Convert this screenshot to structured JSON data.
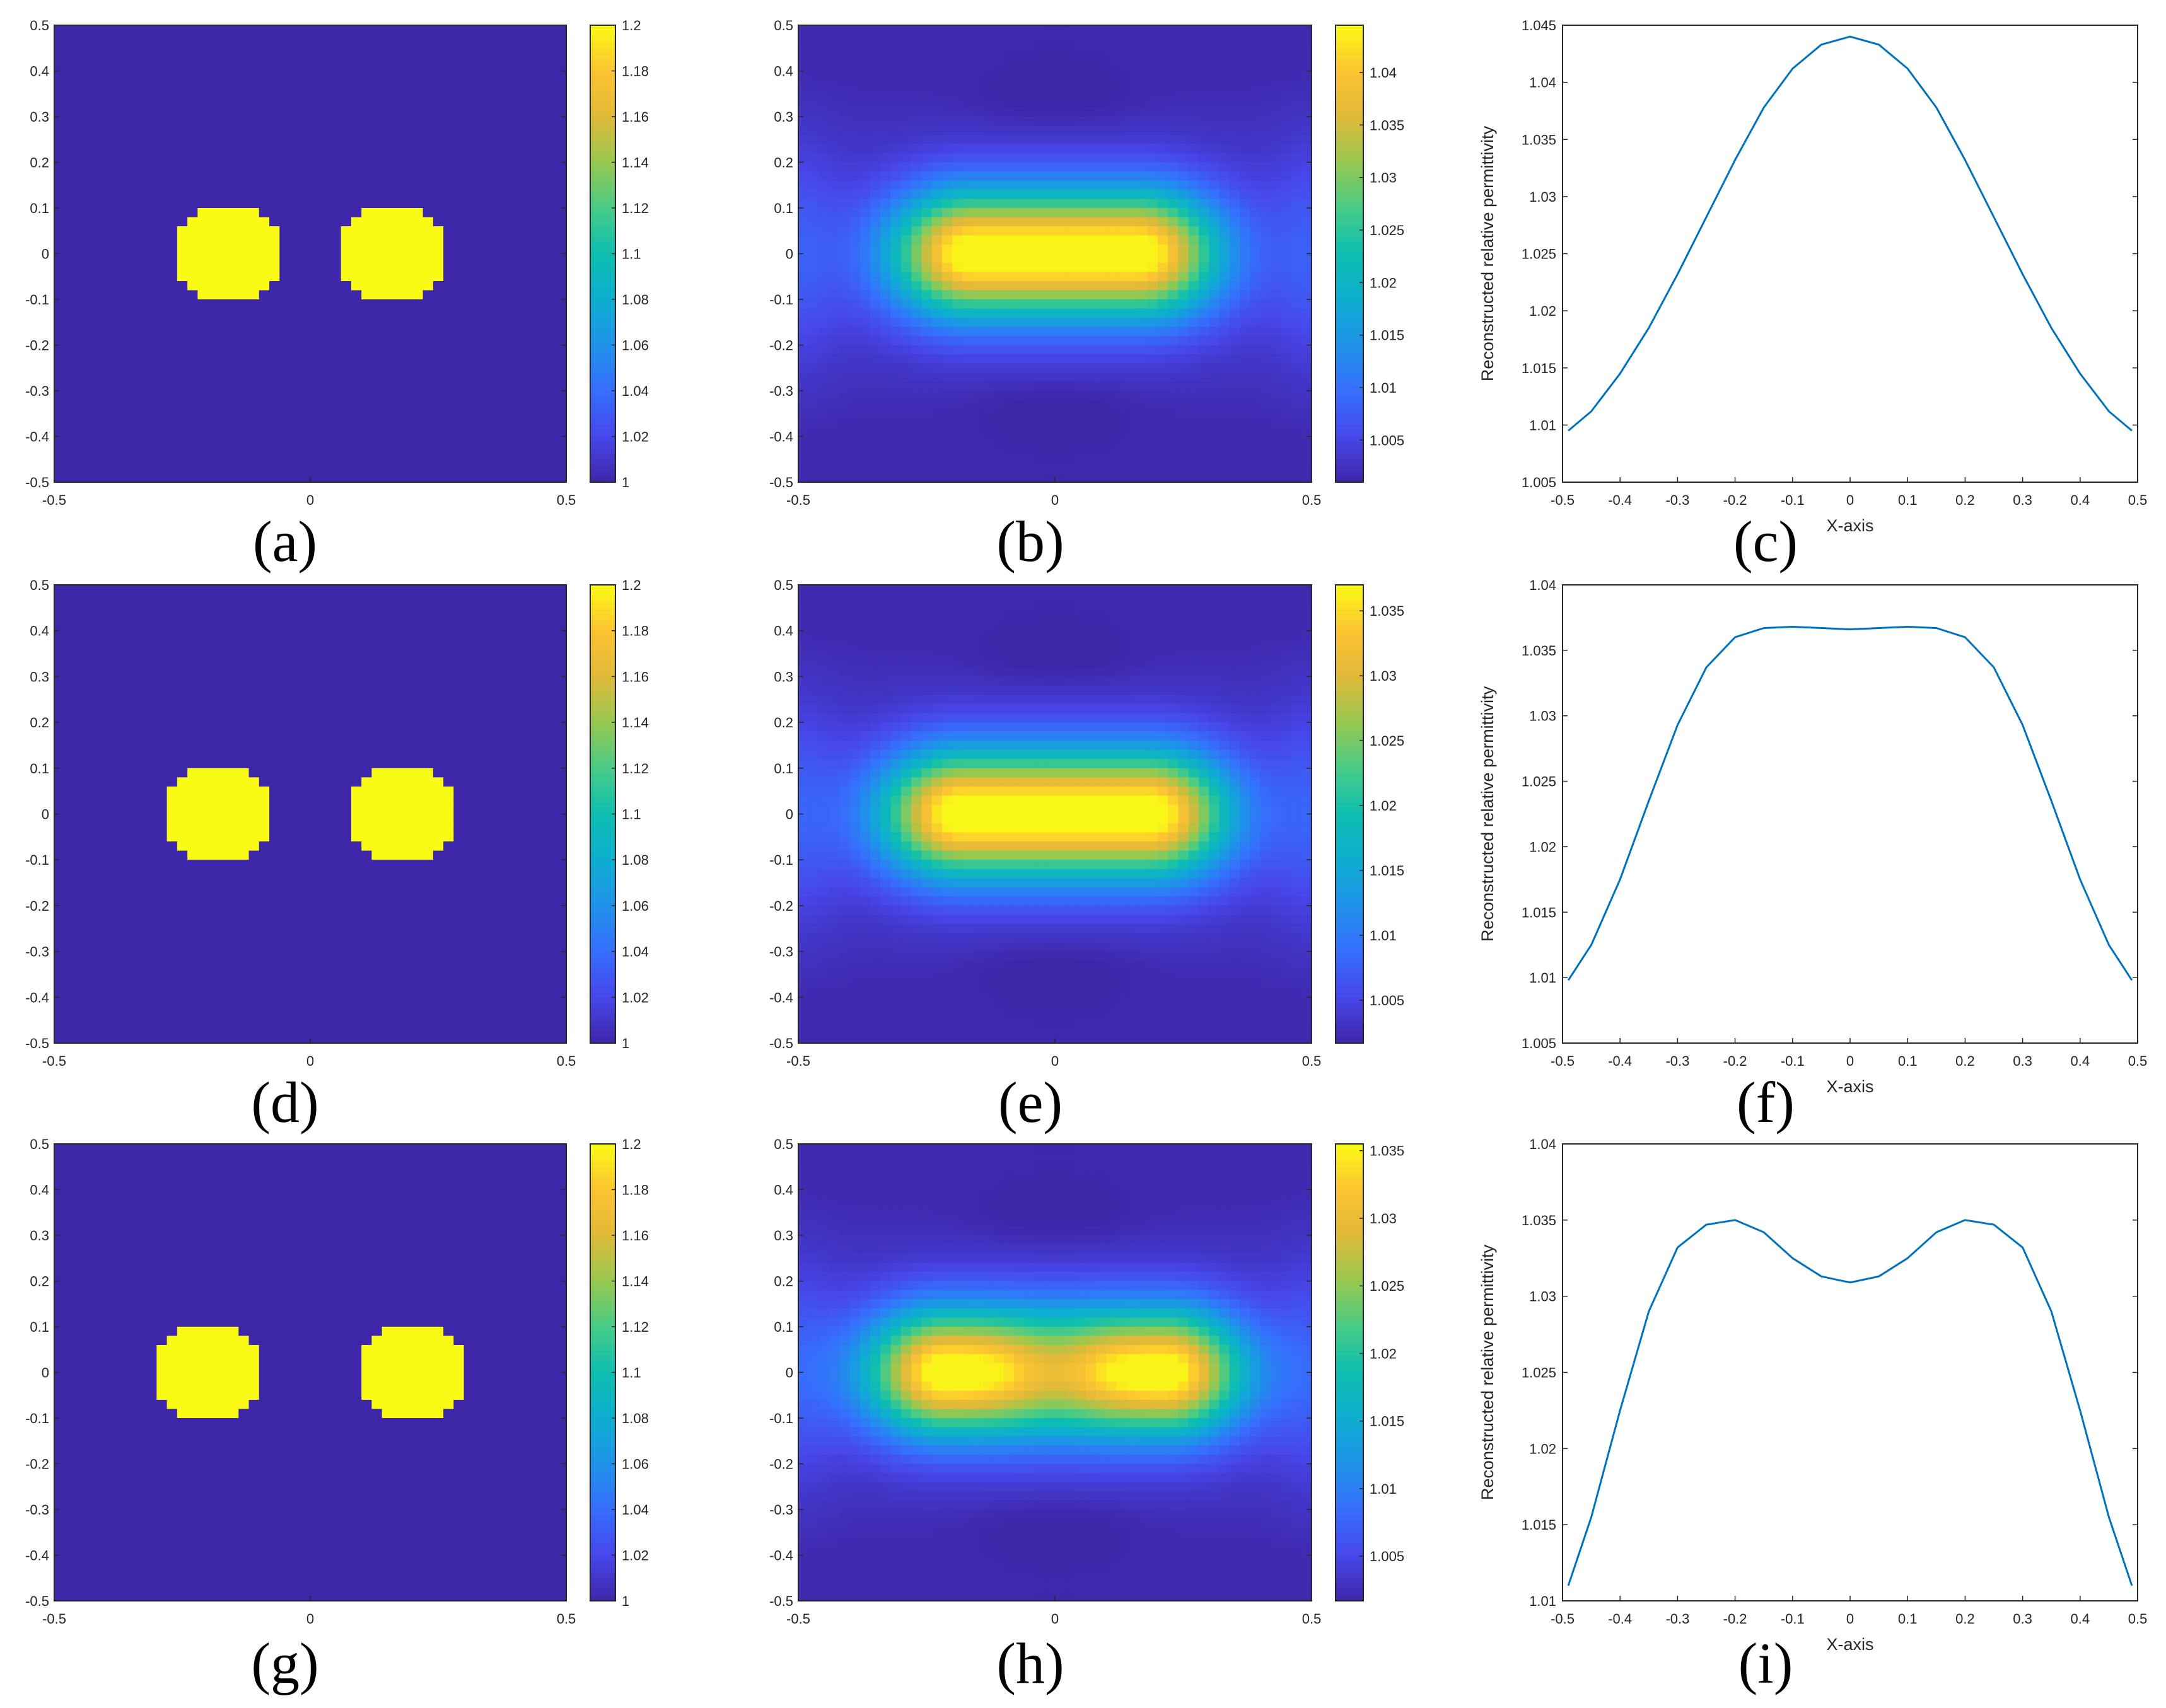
{
  "chart_data": [
    {
      "id": "a",
      "type": "heatmap",
      "panel_label": "(a)",
      "field": "true",
      "centers": [
        -0.16,
        0.16
      ],
      "radius": 0.105,
      "xlim": [
        -0.5,
        0.5
      ],
      "ylim": [
        -0.5,
        0.5
      ],
      "xticks": [
        "-0.5",
        "0",
        "0.5"
      ],
      "yticks": [
        "0.5",
        "0.4",
        "0.3",
        "0.2",
        "0.1",
        "0",
        "-0.1",
        "-0.2",
        "-0.3",
        "-0.4",
        "-0.5"
      ],
      "clim": [
        1,
        1.2
      ],
      "colorbar_ticks": [
        "1.2",
        "1.18",
        "1.16",
        "1.14",
        "1.12",
        "1.1",
        "1.08",
        "1.06",
        "1.04",
        "1.02",
        "1"
      ]
    },
    {
      "id": "b",
      "type": "heatmap",
      "panel_label": "(b)",
      "field": "recon",
      "centers": [
        -0.16,
        0.16
      ],
      "peak": 1.044,
      "xlim": [
        -0.5,
        0.5
      ],
      "ylim": [
        -0.5,
        0.5
      ],
      "xticks": [
        "-0.5",
        "0",
        "0.5"
      ],
      "yticks": [
        "0.5",
        "0.4",
        "0.3",
        "0.2",
        "0.1",
        "0",
        "-0.1",
        "-0.2",
        "-0.3",
        "-0.4",
        "-0.5"
      ],
      "clim": [
        1.001,
        1.0445
      ],
      "colorbar_ticks": [
        "1.04",
        "1.035",
        "1.03",
        "1.025",
        "1.02",
        "1.015",
        "1.01",
        "1.005"
      ]
    },
    {
      "id": "c",
      "type": "line",
      "panel_label": "(c)",
      "xlabel": "X-axis",
      "ylabel": "Reconstructed relative permittivity",
      "xlim": [
        -0.5,
        0.5
      ],
      "ylim": [
        1.005,
        1.045
      ],
      "xticks": [
        "-0.5",
        "-0.4",
        "-0.3",
        "-0.2",
        "-0.1",
        "0",
        "0.1",
        "0.2",
        "0.3",
        "0.4",
        "0.5"
      ],
      "yticks": [
        "1.045",
        "1.04",
        "1.035",
        "1.03",
        "1.025",
        "1.02",
        "1.015",
        "1.01",
        "1.005"
      ],
      "x": [
        -0.49,
        -0.45,
        -0.4,
        -0.35,
        -0.3,
        -0.25,
        -0.2,
        -0.15,
        -0.1,
        -0.05,
        0,
        0.05,
        0.1,
        0.15,
        0.2,
        0.25,
        0.3,
        0.35,
        0.4,
        0.45,
        0.49
      ],
      "values": [
        1.0095,
        1.0112,
        1.0145,
        1.0185,
        1.0232,
        1.0282,
        1.0332,
        1.0378,
        1.0412,
        1.0433,
        1.044,
        1.0433,
        1.0412,
        1.0378,
        1.0332,
        1.0282,
        1.0232,
        1.0185,
        1.0145,
        1.0112,
        1.0095
      ]
    },
    {
      "id": "d",
      "type": "heatmap",
      "panel_label": "(d)",
      "field": "true",
      "centers": [
        -0.18,
        0.18
      ],
      "radius": 0.105,
      "xlim": [
        -0.5,
        0.5
      ],
      "ylim": [
        -0.5,
        0.5
      ],
      "xticks": [
        "-0.5",
        "0",
        "0.5"
      ],
      "yticks": [
        "0.5",
        "0.4",
        "0.3",
        "0.2",
        "0.1",
        "0",
        "-0.1",
        "-0.2",
        "-0.3",
        "-0.4",
        "-0.5"
      ],
      "clim": [
        1,
        1.2
      ],
      "colorbar_ticks": [
        "1.2",
        "1.18",
        "1.16",
        "1.14",
        "1.12",
        "1.1",
        "1.08",
        "1.06",
        "1.04",
        "1.02",
        "1"
      ]
    },
    {
      "id": "e",
      "type": "heatmap",
      "panel_label": "(e)",
      "field": "recon",
      "centers": [
        -0.18,
        0.18
      ],
      "peak": 1.0368,
      "xlim": [
        -0.5,
        0.5
      ],
      "ylim": [
        -0.5,
        0.5
      ],
      "xticks": [
        "-0.5",
        "0",
        "0.5"
      ],
      "yticks": [
        "0.5",
        "0.4",
        "0.3",
        "0.2",
        "0.1",
        "0",
        "-0.1",
        "-0.2",
        "-0.3",
        "-0.4",
        "-0.5"
      ],
      "clim": [
        1.0017,
        1.037
      ],
      "colorbar_ticks": [
        "1.035",
        "1.03",
        "1.025",
        "1.02",
        "1.015",
        "1.01",
        "1.005"
      ]
    },
    {
      "id": "f",
      "type": "line",
      "panel_label": "(f)",
      "xlabel": "X-axis",
      "ylabel": "Reconstructed relative permittivity",
      "xlim": [
        -0.5,
        0.5
      ],
      "ylim": [
        1.005,
        1.04
      ],
      "xticks": [
        "-0.5",
        "-0.4",
        "-0.3",
        "-0.2",
        "-0.1",
        "0",
        "0.1",
        "0.2",
        "0.3",
        "0.4",
        "0.5"
      ],
      "yticks": [
        "1.04",
        "1.035",
        "1.03",
        "1.025",
        "1.02",
        "1.015",
        "1.01",
        "1.005"
      ],
      "x": [
        -0.49,
        -0.45,
        -0.4,
        -0.35,
        -0.3,
        -0.25,
        -0.2,
        -0.15,
        -0.1,
        -0.05,
        0,
        0.05,
        0.1,
        0.15,
        0.2,
        0.25,
        0.3,
        0.35,
        0.4,
        0.45,
        0.49
      ],
      "values": [
        1.0098,
        1.0125,
        1.0175,
        1.0235,
        1.0293,
        1.0337,
        1.036,
        1.0367,
        1.0368,
        1.0367,
        1.0366,
        1.0367,
        1.0368,
        1.0367,
        1.036,
        1.0337,
        1.0293,
        1.0235,
        1.0175,
        1.0125,
        1.0098
      ]
    },
    {
      "id": "g",
      "type": "heatmap",
      "panel_label": "(g)",
      "field": "true",
      "centers": [
        -0.2,
        0.2
      ],
      "radius": 0.105,
      "xlim": [
        -0.5,
        0.5
      ],
      "ylim": [
        -0.5,
        0.5
      ],
      "xticks": [
        "-0.5",
        "0",
        "0.5"
      ],
      "yticks": [
        "0.5",
        "0.4",
        "0.3",
        "0.2",
        "0.1",
        "0",
        "-0.1",
        "-0.2",
        "-0.3",
        "-0.4",
        "-0.5"
      ],
      "clim": [
        1,
        1.2
      ],
      "colorbar_ticks": [
        "1.2",
        "1.18",
        "1.16",
        "1.14",
        "1.12",
        "1.1",
        "1.08",
        "1.06",
        "1.04",
        "1.02",
        "1"
      ]
    },
    {
      "id": "h",
      "type": "heatmap",
      "panel_label": "(h)",
      "field": "recon",
      "centers": [
        -0.21,
        0.21
      ],
      "peak": 1.035,
      "xlim": [
        -0.5,
        0.5
      ],
      "ylim": [
        -0.5,
        0.5
      ],
      "xticks": [
        "-0.5",
        "0",
        "0.5"
      ],
      "yticks": [
        "0.5",
        "0.4",
        "0.3",
        "0.2",
        "0.1",
        "0",
        "-0.1",
        "-0.2",
        "-0.3",
        "-0.4",
        "-0.5"
      ],
      "clim": [
        1.0017,
        1.0355
      ],
      "colorbar_ticks": [
        "1.035",
        "1.03",
        "1.025",
        "1.02",
        "1.015",
        "1.01",
        "1.005"
      ]
    },
    {
      "id": "i",
      "type": "line",
      "panel_label": "(i)",
      "xlabel": "X-axis",
      "ylabel": "Reconstructed relative permittivity",
      "xlim": [
        -0.5,
        0.5
      ],
      "ylim": [
        1.01,
        1.04
      ],
      "xticks": [
        "-0.5",
        "-0.4",
        "-0.3",
        "-0.2",
        "-0.1",
        "0",
        "0.1",
        "0.2",
        "0.3",
        "0.4",
        "0.5"
      ],
      "yticks": [
        "1.04",
        "1.035",
        "1.03",
        "1.025",
        "1.02",
        "1.015",
        "1.01"
      ],
      "x": [
        -0.49,
        -0.45,
        -0.4,
        -0.35,
        -0.3,
        -0.25,
        -0.2,
        -0.15,
        -0.1,
        -0.05,
        0,
        0.05,
        0.1,
        0.15,
        0.2,
        0.25,
        0.3,
        0.35,
        0.4,
        0.45,
        0.49
      ],
      "values": [
        1.011,
        1.0155,
        1.0225,
        1.029,
        1.0332,
        1.0347,
        1.035,
        1.0342,
        1.0325,
        1.0313,
        1.0309,
        1.0313,
        1.0325,
        1.0342,
        1.035,
        1.0347,
        1.0332,
        1.029,
        1.0225,
        1.0155,
        1.011
      ]
    }
  ],
  "colors": {
    "line": "#0072BD",
    "axis": "#262626"
  }
}
